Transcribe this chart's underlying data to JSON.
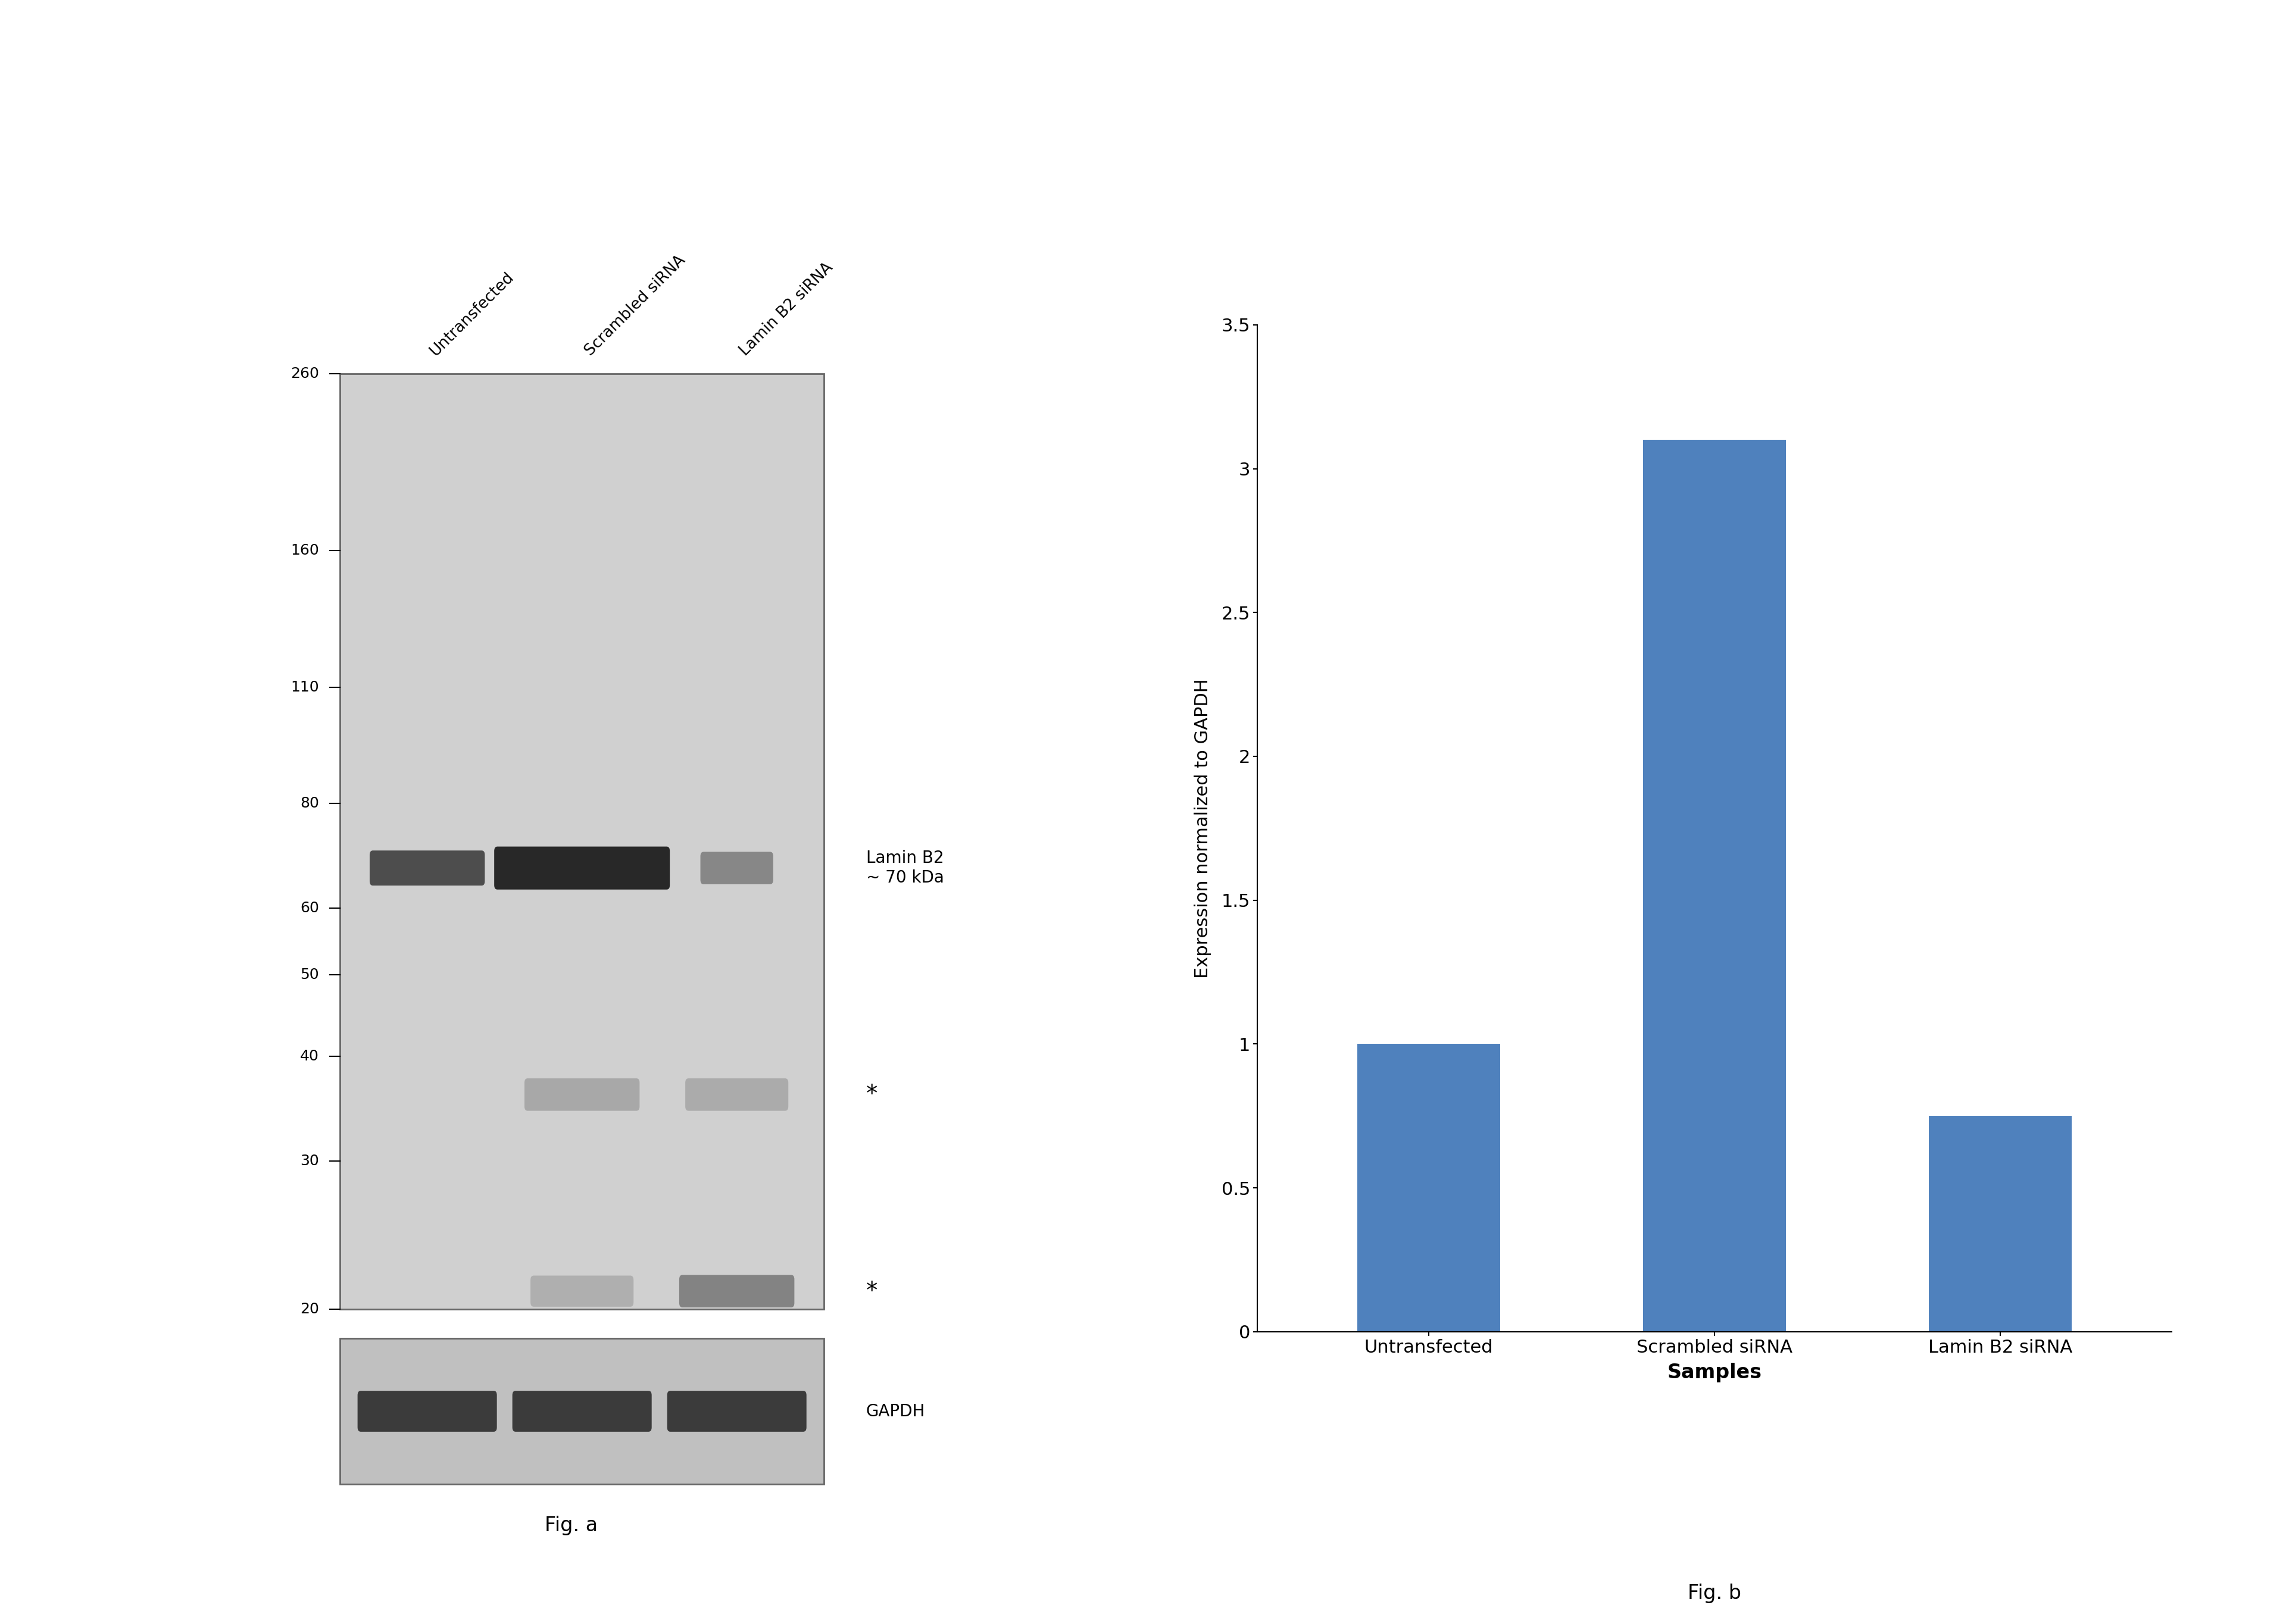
{
  "fig_width": 38.4,
  "fig_height": 27.29,
  "background_color": "#ffffff",
  "bar_categories": [
    "Untransfected",
    "Scrambled siRNA",
    "Lamin B2 siRNA"
  ],
  "bar_values": [
    1.0,
    3.1,
    0.75
  ],
  "bar_color": "#4f81bd",
  "bar_ylabel": "Expression normalized to GAPDH",
  "bar_xlabel": "Samples",
  "bar_ylim": [
    0,
    3.5
  ],
  "bar_yticks": [
    0,
    0.5,
    1.0,
    1.5,
    2.0,
    2.5,
    3.0,
    3.5
  ],
  "fig_a_label": "Fig. a",
  "fig_b_label": "Fig. b",
  "wb_ladder_labels": [
    "260",
    "160",
    "110",
    "80",
    "60",
    "50",
    "40",
    "30",
    "20"
  ],
  "wb_annotation_text": "Lamin B2\n~ 70 kDa",
  "wb_gapdh_text": "GAPDH",
  "wb_lane_labels": [
    "Untransfected",
    "Scrambled siRNA",
    "Lamin B2 siRNA"
  ],
  "blot_bg_color": "#d0d0d0",
  "blot_bg_color2": "#c0c0c0",
  "blot_edge_color": "#666666",
  "band_dark": "#1a1a1a",
  "band_medium": "#444444",
  "band_light": "#888888"
}
